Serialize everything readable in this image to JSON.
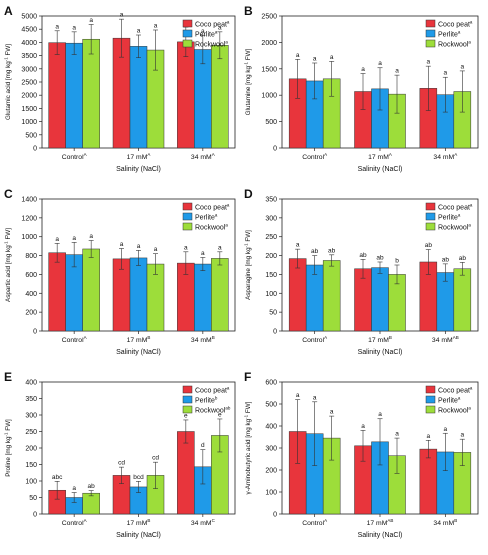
{
  "colors": {
    "coco": "#e8353c",
    "perlite": "#1f9ae8",
    "rockwool": "#9ddd3a"
  },
  "chart_data": [
    {
      "panel_letter": "A",
      "type": "bar",
      "categories": [
        "Control",
        "17 mM",
        "34 mM"
      ],
      "category_sups": [
        "A",
        "A",
        "A"
      ],
      "xlabel": "Salinity (NaCl)",
      "ylabel_parts": [
        "Glutamic acid [mg kg",
        "-1",
        " FW]"
      ],
      "ylim": [
        0,
        5000
      ],
      "yticks": [
        0,
        500,
        1000,
        1500,
        2000,
        2500,
        3000,
        3500,
        4000,
        4500,
        5000
      ],
      "legend_position": "top-right",
      "series": [
        {
          "name": "Coco peat",
          "sup": "a",
          "color": "#e8353c",
          "values": [
            3990,
            4160,
            4020
          ],
          "errors": [
            450,
            720,
            560
          ],
          "letters": [
            "a",
            "a",
            "a"
          ]
        },
        {
          "name": "Perlite",
          "sup": "a",
          "color": "#1f9ae8",
          "values": [
            3970,
            3850,
            3730
          ],
          "errors": [
            430,
            430,
            540
          ],
          "letters": [
            "a",
            "a",
            "a"
          ]
        },
        {
          "name": "Rockwool",
          "sup": "a",
          "color": "#9ddd3a",
          "values": [
            4120,
            3710,
            3890
          ],
          "errors": [
            560,
            760,
            510
          ],
          "letters": [
            "a",
            "a",
            "a"
          ]
        }
      ]
    },
    {
      "panel_letter": "B",
      "type": "bar",
      "categories": [
        "Control",
        "17 mM",
        "34 mM"
      ],
      "category_sups": [
        "A",
        "A",
        "A"
      ],
      "xlabel": "Salinity (NaCl)",
      "ylabel_parts": [
        "Glutamine [mg kg",
        "-1",
        " FW]"
      ],
      "ylim": [
        0,
        2500
      ],
      "yticks": [
        0,
        500,
        1000,
        1500,
        2000,
        2500
      ],
      "legend_position": "top-right",
      "series": [
        {
          "name": "Coco peat",
          "sup": "a",
          "color": "#e8353c",
          "values": [
            1310,
            1070,
            1130
          ],
          "errors": [
            370,
            340,
            420
          ],
          "letters": [
            "a",
            "a",
            "a"
          ]
        },
        {
          "name": "Perlite",
          "sup": "a",
          "color": "#1f9ae8",
          "values": [
            1270,
            1120,
            1010
          ],
          "errors": [
            340,
            400,
            330
          ],
          "letters": [
            "a",
            "a",
            "a"
          ]
        },
        {
          "name": "Rockwool",
          "sup": "a",
          "color": "#9ddd3a",
          "values": [
            1310,
            1020,
            1070
          ],
          "errors": [
            330,
            360,
            390
          ],
          "letters": [
            "a",
            "a",
            "a"
          ]
        }
      ]
    },
    {
      "panel_letter": "C",
      "type": "bar",
      "categories": [
        "Control",
        "17 mM",
        "34 mM"
      ],
      "category_sups": [
        "A",
        "B",
        "B"
      ],
      "xlabel": "Salinity (NaCl)",
      "ylabel_parts": [
        "Aspartic acid [mg kg",
        "-1",
        " FW]"
      ],
      "ylim": [
        0,
        1400
      ],
      "yticks": [
        0,
        200,
        400,
        600,
        800,
        1000,
        1200,
        1400
      ],
      "legend_position": "top-right",
      "series": [
        {
          "name": "Coco peat",
          "sup": "a",
          "color": "#e8353c",
          "values": [
            830,
            765,
            720
          ],
          "errors": [
            100,
            110,
            120
          ],
          "letters": [
            "a",
            "a",
            "a"
          ]
        },
        {
          "name": "Perlite",
          "sup": "a",
          "color": "#1f9ae8",
          "values": [
            810,
            775,
            710
          ],
          "errors": [
            130,
            80,
            70
          ],
          "letters": [
            "a",
            "a",
            "a"
          ]
        },
        {
          "name": "Rockwool",
          "sup": "a",
          "color": "#9ddd3a",
          "values": [
            870,
            710,
            770
          ],
          "errors": [
            90,
            110,
            70
          ],
          "letters": [
            "a",
            "a",
            "a"
          ]
        }
      ]
    },
    {
      "panel_letter": "D",
      "type": "bar",
      "categories": [
        "Control",
        "17 mM",
        "34 mM"
      ],
      "category_sups": [
        "A",
        "B",
        "AB"
      ],
      "xlabel": "Salinity (NaCl)",
      "ylabel_parts": [
        "Asparagine [mg kg",
        "-1",
        " FW]"
      ],
      "ylim": [
        0,
        350
      ],
      "yticks": [
        0,
        50,
        100,
        150,
        200,
        250,
        300,
        350
      ],
      "legend_position": "top-right",
      "series": [
        {
          "name": "Coco peat",
          "sup": "a",
          "color": "#e8353c",
          "values": [
            192,
            165,
            183
          ],
          "errors": [
            25,
            25,
            33
          ],
          "letters": [
            "a",
            "ab",
            "ab"
          ]
        },
        {
          "name": "Perlite",
          "sup": "a",
          "color": "#1f9ae8",
          "values": [
            175,
            168,
            155
          ],
          "errors": [
            25,
            15,
            23
          ],
          "letters": [
            "ab",
            "ab",
            "ab"
          ]
        },
        {
          "name": "Rockwool",
          "sup": "a",
          "color": "#9ddd3a",
          "values": [
            187,
            150,
            165
          ],
          "errors": [
            15,
            25,
            17
          ],
          "letters": [
            "ab",
            "b",
            "ab"
          ]
        }
      ]
    },
    {
      "panel_letter": "E",
      "type": "bar",
      "categories": [
        "Control",
        "17 mM",
        "34 mM"
      ],
      "category_sups": [
        "A",
        "B",
        "C"
      ],
      "xlabel": "Salinity (NaCl)",
      "ylabel_parts": [
        "Proline [mg kg",
        "-1",
        " FW]"
      ],
      "ylim": [
        0,
        400
      ],
      "yticks": [
        0,
        50,
        100,
        150,
        200,
        250,
        300,
        350,
        400
      ],
      "legend_position": "top-right",
      "series": [
        {
          "name": "Coco peat",
          "sup": "a",
          "color": "#e8353c",
          "values": [
            72,
            117,
            250
          ],
          "errors": [
            27,
            25,
            35
          ],
          "letters": [
            "abc",
            "cd",
            "e"
          ]
        },
        {
          "name": "Perlite",
          "sup": "b",
          "color": "#1f9ae8",
          "values": [
            50,
            82,
            143
          ],
          "errors": [
            15,
            17,
            52
          ],
          "letters": [
            "a",
            "bcd",
            "d"
          ]
        },
        {
          "name": "Rockwool",
          "sup": "ab",
          "color": "#9ddd3a",
          "values": [
            63,
            117,
            238
          ],
          "errors": [
            8,
            40,
            50
          ],
          "letters": [
            "ab",
            "cd",
            "e"
          ]
        }
      ]
    },
    {
      "panel_letter": "F",
      "type": "bar",
      "categories": [
        "Control",
        "17 mM",
        "34 mM"
      ],
      "category_sups": [
        "A",
        "AB",
        "B"
      ],
      "xlabel": "Salinity (NaCl)",
      "ylabel_parts": [
        "γ-Aminobutyric acid [mg kg",
        "-1",
        " FW]"
      ],
      "ylim": [
        0,
        600
      ],
      "yticks": [
        0,
        100,
        200,
        300,
        400,
        500,
        600
      ],
      "legend_position": "top-right",
      "series": [
        {
          "name": "Coco peat",
          "sup": "a",
          "color": "#e8353c",
          "values": [
            375,
            310,
            295
          ],
          "errors": [
            145,
            70,
            40
          ],
          "letters": [
            "a",
            "a",
            "a"
          ]
        },
        {
          "name": "Perlite",
          "sup": "a",
          "color": "#1f9ae8",
          "values": [
            365,
            328,
            282
          ],
          "errors": [
            145,
            105,
            85
          ],
          "letters": [
            "a",
            "a",
            "a"
          ]
        },
        {
          "name": "Rockwool",
          "sup": "a",
          "color": "#9ddd3a",
          "values": [
            345,
            265,
            280
          ],
          "errors": [
            100,
            80,
            60
          ],
          "letters": [
            "a",
            "a",
            "a"
          ]
        }
      ]
    }
  ]
}
